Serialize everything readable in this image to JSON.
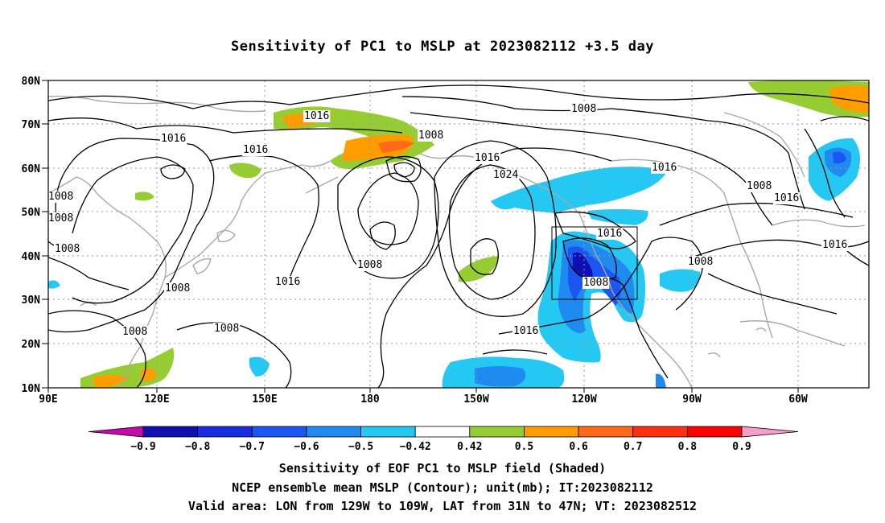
{
  "title": "Sensitivity of PC1 to MSLP at 2023082112 +3.5 day",
  "lat_labels": [
    "80N",
    "70N",
    "60N",
    "50N",
    "40N",
    "30N",
    "20N",
    "10N"
  ],
  "lon_labels": [
    "90E",
    "120E",
    "150E",
    "180",
    "150W",
    "120W",
    "90W",
    "60W"
  ],
  "contour_labels": [
    "1016",
    "1008",
    "1016",
    "1016",
    "1008",
    "1016",
    "1024",
    "1016",
    "1008",
    "1016",
    "1008",
    "1008",
    "1008",
    "1008",
    "1016",
    "1008",
    "1008",
    "1016",
    "1008",
    "1016",
    "1016",
    "1008",
    "1008"
  ],
  "colorbar": {
    "values": [
      "-0.9",
      "-0.8",
      "-0.7",
      "-0.6",
      "-0.5",
      "-0.42",
      "0.42",
      "0.5",
      "0.6",
      "0.7",
      "0.8",
      "0.9"
    ],
    "colors": [
      "#c40aa8",
      "#1010b0",
      "#1a2ee0",
      "#1d55f0",
      "#1f8af0",
      "#25c8f2",
      "#ffffff",
      "#96cd32",
      "#ff9d00",
      "#ff6a1a",
      "#ff3010",
      "#ff0000",
      "#f59ec8"
    ]
  },
  "captions": {
    "line1": "Sensitivity of EOF PC1 to MSLP field (Shaded)",
    "line2": "NCEP ensemble mean MSLP (Contour); unit(mb); IT:2023082112",
    "line3": "Valid area: LON from 129W to 109W, LAT from 31N to 47N; VT: 2023082512"
  }
}
